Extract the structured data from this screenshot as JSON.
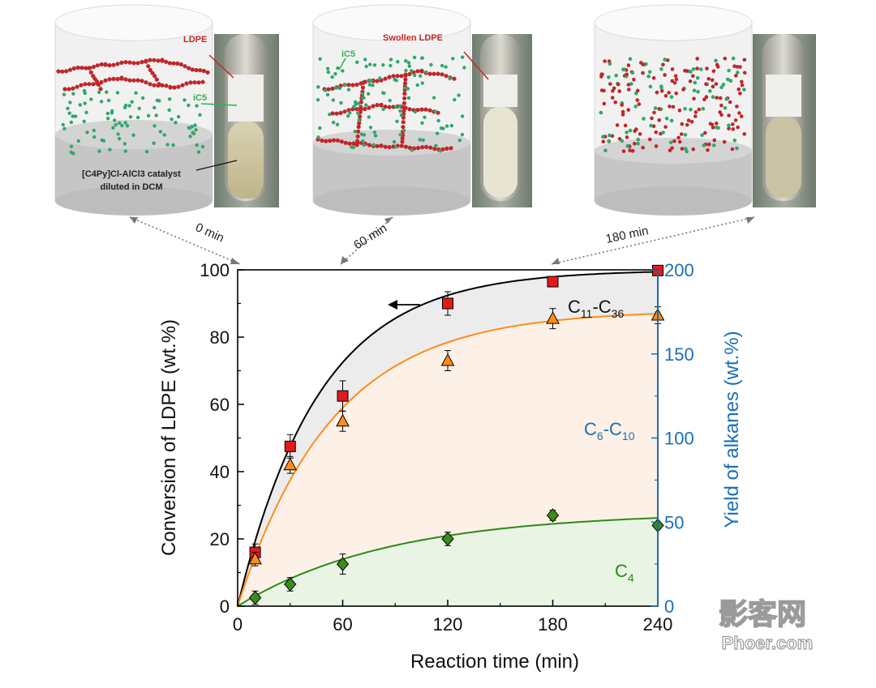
{
  "panels": [
    {
      "time_label": "0 min",
      "labels": [
        "LDPE",
        "iC5",
        "[C4Py]Cl-AlCl3 catalyst",
        "diluted in DCM"
      ]
    },
    {
      "time_label": "60 min",
      "labels": [
        "Swollen LDPE",
        "iC5"
      ]
    },
    {
      "time_label": "180 min",
      "labels": []
    }
  ],
  "watermark": {
    "line1": "影客网",
    "line2": "Phoer.com"
  },
  "chart_data": {
    "type": "scatter",
    "xlabel": "Reaction time (min)",
    "ylabel_left": "Conversion of LDPE (wt.%)",
    "ylabel_right": "Yield of alkanes  (wt.%)",
    "xlim": [
      0,
      240
    ],
    "ylim_left": [
      0,
      100
    ],
    "ylim_right": [
      0,
      200
    ],
    "x_ticks": [
      0,
      60,
      120,
      180,
      240
    ],
    "y_ticks_left": [
      0,
      20,
      40,
      60,
      80,
      100
    ],
    "y_ticks_right": [
      0,
      50,
      100,
      150,
      200
    ],
    "right_axis_color": "#1a6fb5",
    "arrow_direction": "left",
    "series": [
      {
        "name": "C11-C36",
        "label_main": "C",
        "label_sub1": "11",
        "label_dash": "-C",
        "label_sub2": "36",
        "marker": "square",
        "color": "#e31a1c",
        "line_color": "#000000",
        "fill": "#ececec",
        "x": [
          10,
          30,
          60,
          120,
          180,
          240
        ],
        "y": [
          16,
          47.5,
          62.5,
          90,
          96.5,
          99.8
        ],
        "err": [
          2.5,
          3.5,
          4.5,
          3.5,
          1.5,
          0.8
        ]
      },
      {
        "name": "C6-C10",
        "label_main": "C",
        "label_sub1": "6",
        "label_dash": "-C",
        "label_sub2": "10",
        "label_color": "#1a6fb5",
        "marker": "triangle",
        "color": "#ff8c1a",
        "line_color": "#ff8c1a",
        "fill": "#fdf1e7",
        "x": [
          10,
          30,
          60,
          120,
          180,
          240
        ],
        "y": [
          14,
          42,
          55,
          73,
          85.5,
          86.5
        ],
        "err": [
          2,
          2.5,
          3,
          3,
          3,
          2.5
        ]
      },
      {
        "name": "C4",
        "label_main": "C",
        "label_sub1": "4",
        "label_color": "#2a8a1a",
        "marker": "diamond",
        "color": "#3c8c1c",
        "line_color": "#2a8a1a",
        "fill": "#e9f4e4",
        "x": [
          10,
          30,
          60,
          120,
          180,
          240
        ],
        "y": [
          2.5,
          6.5,
          12.5,
          20,
          27,
          24
        ],
        "err": [
          2,
          2,
          3,
          2,
          1.5,
          0.5
        ]
      }
    ],
    "fit_curves": [
      {
        "series": "C11-C36",
        "amplitude": 100,
        "k": 0.0215
      },
      {
        "series": "C6-C10",
        "amplitude": 88,
        "k": 0.0185
      },
      {
        "series": "C4",
        "amplitude": 28,
        "k": 0.0115
      }
    ]
  }
}
